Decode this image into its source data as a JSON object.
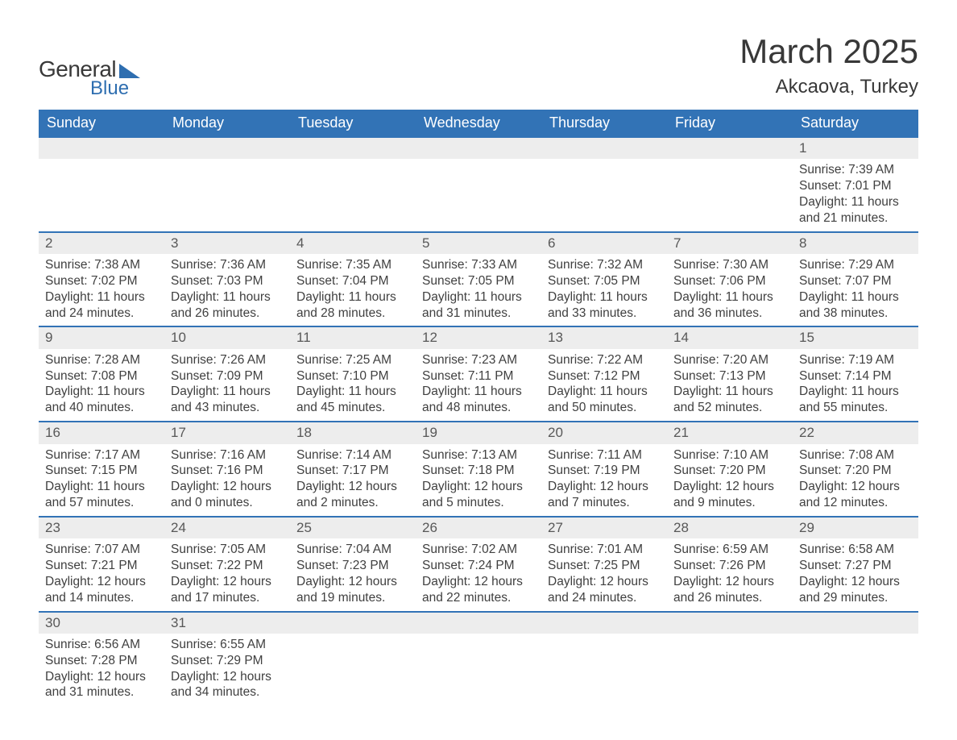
{
  "logo": {
    "text1": "General",
    "text2": "Blue",
    "text1_color": "#383838",
    "text2_color": "#2e6eb0"
  },
  "title": "March 2025",
  "location": "Akcaova, Turkey",
  "colors": {
    "header_bg": "#3273b6",
    "header_text": "#ffffff",
    "daynum_bg": "#ededed",
    "daynum_text": "#585858",
    "body_text": "#404040",
    "row_border": "#3273b6",
    "page_bg": "#ffffff"
  },
  "fonts": {
    "title_size_pt": 32,
    "location_size_pt": 18,
    "header_size_pt": 14,
    "cell_size_pt": 12
  },
  "calendar": {
    "type": "table",
    "columns": [
      "Sunday",
      "Monday",
      "Tuesday",
      "Wednesday",
      "Thursday",
      "Friday",
      "Saturday"
    ],
    "weeks": [
      [
        null,
        null,
        null,
        null,
        null,
        null,
        {
          "day": "1",
          "sunrise": "7:39 AM",
          "sunset": "7:01 PM",
          "daylight1": "Daylight: 11 hours",
          "daylight2": "and 21 minutes."
        }
      ],
      [
        {
          "day": "2",
          "sunrise": "7:38 AM",
          "sunset": "7:02 PM",
          "daylight1": "Daylight: 11 hours",
          "daylight2": "and 24 minutes."
        },
        {
          "day": "3",
          "sunrise": "7:36 AM",
          "sunset": "7:03 PM",
          "daylight1": "Daylight: 11 hours",
          "daylight2": "and 26 minutes."
        },
        {
          "day": "4",
          "sunrise": "7:35 AM",
          "sunset": "7:04 PM",
          "daylight1": "Daylight: 11 hours",
          "daylight2": "and 28 minutes."
        },
        {
          "day": "5",
          "sunrise": "7:33 AM",
          "sunset": "7:05 PM",
          "daylight1": "Daylight: 11 hours",
          "daylight2": "and 31 minutes."
        },
        {
          "day": "6",
          "sunrise": "7:32 AM",
          "sunset": "7:05 PM",
          "daylight1": "Daylight: 11 hours",
          "daylight2": "and 33 minutes."
        },
        {
          "day": "7",
          "sunrise": "7:30 AM",
          "sunset": "7:06 PM",
          "daylight1": "Daylight: 11 hours",
          "daylight2": "and 36 minutes."
        },
        {
          "day": "8",
          "sunrise": "7:29 AM",
          "sunset": "7:07 PM",
          "daylight1": "Daylight: 11 hours",
          "daylight2": "and 38 minutes."
        }
      ],
      [
        {
          "day": "9",
          "sunrise": "7:28 AM",
          "sunset": "7:08 PM",
          "daylight1": "Daylight: 11 hours",
          "daylight2": "and 40 minutes."
        },
        {
          "day": "10",
          "sunrise": "7:26 AM",
          "sunset": "7:09 PM",
          "daylight1": "Daylight: 11 hours",
          "daylight2": "and 43 minutes."
        },
        {
          "day": "11",
          "sunrise": "7:25 AM",
          "sunset": "7:10 PM",
          "daylight1": "Daylight: 11 hours",
          "daylight2": "and 45 minutes."
        },
        {
          "day": "12",
          "sunrise": "7:23 AM",
          "sunset": "7:11 PM",
          "daylight1": "Daylight: 11 hours",
          "daylight2": "and 48 minutes."
        },
        {
          "day": "13",
          "sunrise": "7:22 AM",
          "sunset": "7:12 PM",
          "daylight1": "Daylight: 11 hours",
          "daylight2": "and 50 minutes."
        },
        {
          "day": "14",
          "sunrise": "7:20 AM",
          "sunset": "7:13 PM",
          "daylight1": "Daylight: 11 hours",
          "daylight2": "and 52 minutes."
        },
        {
          "day": "15",
          "sunrise": "7:19 AM",
          "sunset": "7:14 PM",
          "daylight1": "Daylight: 11 hours",
          "daylight2": "and 55 minutes."
        }
      ],
      [
        {
          "day": "16",
          "sunrise": "7:17 AM",
          "sunset": "7:15 PM",
          "daylight1": "Daylight: 11 hours",
          "daylight2": "and 57 minutes."
        },
        {
          "day": "17",
          "sunrise": "7:16 AM",
          "sunset": "7:16 PM",
          "daylight1": "Daylight: 12 hours",
          "daylight2": "and 0 minutes."
        },
        {
          "day": "18",
          "sunrise": "7:14 AM",
          "sunset": "7:17 PM",
          "daylight1": "Daylight: 12 hours",
          "daylight2": "and 2 minutes."
        },
        {
          "day": "19",
          "sunrise": "7:13 AM",
          "sunset": "7:18 PM",
          "daylight1": "Daylight: 12 hours",
          "daylight2": "and 5 minutes."
        },
        {
          "day": "20",
          "sunrise": "7:11 AM",
          "sunset": "7:19 PM",
          "daylight1": "Daylight: 12 hours",
          "daylight2": "and 7 minutes."
        },
        {
          "day": "21",
          "sunrise": "7:10 AM",
          "sunset": "7:20 PM",
          "daylight1": "Daylight: 12 hours",
          "daylight2": "and 9 minutes."
        },
        {
          "day": "22",
          "sunrise": "7:08 AM",
          "sunset": "7:20 PM",
          "daylight1": "Daylight: 12 hours",
          "daylight2": "and 12 minutes."
        }
      ],
      [
        {
          "day": "23",
          "sunrise": "7:07 AM",
          "sunset": "7:21 PM",
          "daylight1": "Daylight: 12 hours",
          "daylight2": "and 14 minutes."
        },
        {
          "day": "24",
          "sunrise": "7:05 AM",
          "sunset": "7:22 PM",
          "daylight1": "Daylight: 12 hours",
          "daylight2": "and 17 minutes."
        },
        {
          "day": "25",
          "sunrise": "7:04 AM",
          "sunset": "7:23 PM",
          "daylight1": "Daylight: 12 hours",
          "daylight2": "and 19 minutes."
        },
        {
          "day": "26",
          "sunrise": "7:02 AM",
          "sunset": "7:24 PM",
          "daylight1": "Daylight: 12 hours",
          "daylight2": "and 22 minutes."
        },
        {
          "day": "27",
          "sunrise": "7:01 AM",
          "sunset": "7:25 PM",
          "daylight1": "Daylight: 12 hours",
          "daylight2": "and 24 minutes."
        },
        {
          "day": "28",
          "sunrise": "6:59 AM",
          "sunset": "7:26 PM",
          "daylight1": "Daylight: 12 hours",
          "daylight2": "and 26 minutes."
        },
        {
          "day": "29",
          "sunrise": "6:58 AM",
          "sunset": "7:27 PM",
          "daylight1": "Daylight: 12 hours",
          "daylight2": "and 29 minutes."
        }
      ],
      [
        {
          "day": "30",
          "sunrise": "6:56 AM",
          "sunset": "7:28 PM",
          "daylight1": "Daylight: 12 hours",
          "daylight2": "and 31 minutes."
        },
        {
          "day": "31",
          "sunrise": "6:55 AM",
          "sunset": "7:29 PM",
          "daylight1": "Daylight: 12 hours",
          "daylight2": "and 34 minutes."
        },
        null,
        null,
        null,
        null,
        null
      ]
    ],
    "labels": {
      "sunrise_prefix": "Sunrise: ",
      "sunset_prefix": "Sunset: "
    }
  }
}
